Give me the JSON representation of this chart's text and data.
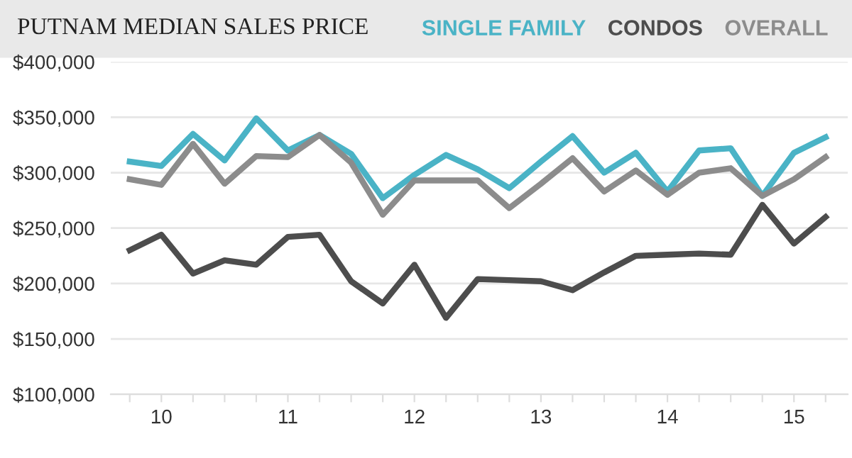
{
  "chart_data": {
    "type": "line",
    "title": "PUTNAM MEDIAN SALES PRICE",
    "categories": [
      null,
      "10",
      null,
      null,
      null,
      "11",
      null,
      null,
      null,
      "12",
      null,
      null,
      null,
      "13",
      null,
      null,
      null,
      "14",
      null,
      null,
      null,
      "15",
      null
    ],
    "series": [
      {
        "name": "SINGLE FAMILY",
        "color": "#4ab3c6",
        "values": [
          310000,
          306000,
          335000,
          311000,
          349000,
          320000,
          334000,
          317000,
          277000,
          298000,
          316000,
          303000,
          286000,
          310000,
          333000,
          300000,
          318000,
          283000,
          320000,
          322000,
          279000,
          318000,
          332000
        ]
      },
      {
        "name": "CONDOS",
        "color": "#4d4d4d",
        "values": [
          230000,
          244000,
          209000,
          221000,
          217000,
          242000,
          244000,
          202000,
          182000,
          217000,
          169000,
          204000,
          203000,
          202000,
          194000,
          210000,
          225000,
          226000,
          227000,
          226000,
          271000,
          236000,
          260000
        ]
      },
      {
        "name": "OVERALL",
        "color": "#8c8c8c",
        "values": [
          294000,
          289000,
          326000,
          290000,
          315000,
          314000,
          334000,
          309000,
          262000,
          293000,
          293000,
          293000,
          268000,
          290000,
          313000,
          283000,
          302000,
          280000,
          300000,
          304000,
          279000,
          294000,
          314000
        ]
      }
    ],
    "ylim": [
      100000,
      400000
    ],
    "yticks": [
      {
        "value": 100000,
        "label": "$100,000"
      },
      {
        "value": 150000,
        "label": "$150,000"
      },
      {
        "value": 200000,
        "label": "$200,000"
      },
      {
        "value": 250000,
        "label": "$250,000"
      },
      {
        "value": 300000,
        "label": "$300,000"
      },
      {
        "value": 350000,
        "label": "$350,000"
      },
      {
        "value": 400000,
        "label": "$400,000"
      }
    ],
    "grid": "y",
    "legend": "top right",
    "marker": "none",
    "line_style": "solid"
  }
}
